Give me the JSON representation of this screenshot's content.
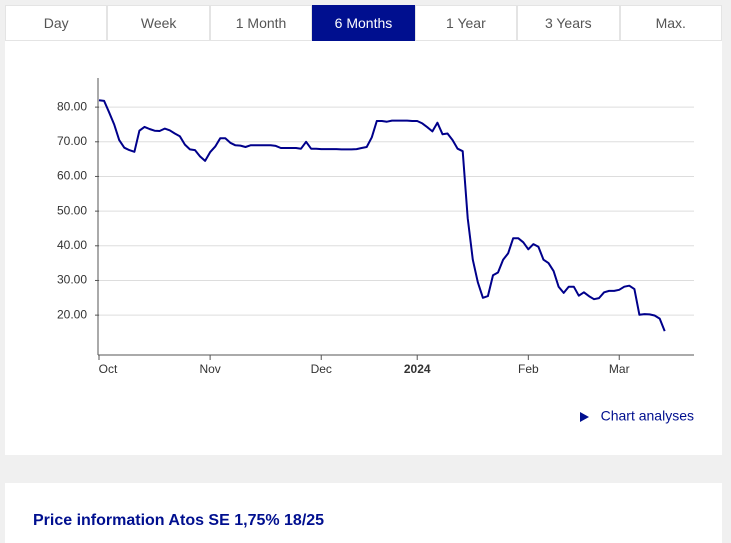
{
  "tabs": [
    {
      "label": "Day"
    },
    {
      "label": "Week"
    },
    {
      "label": "1 Month"
    },
    {
      "label": "6 Months",
      "active": true
    },
    {
      "label": "1 Year"
    },
    {
      "label": "3 Years"
    },
    {
      "label": "Max."
    }
  ],
  "chart_data": {
    "type": "line",
    "color": "#00008b",
    "values": [
      82.0,
      81.8,
      78.5,
      75.0,
      70.5,
      68.3,
      67.6,
      67.1,
      73.2,
      74.3,
      73.7,
      73.2,
      73.1,
      73.8,
      73.3,
      72.4,
      71.6,
      69.2,
      67.8,
      67.6,
      65.8,
      64.5,
      67.0,
      68.6,
      71.0,
      71.0,
      69.7,
      69.0,
      68.9,
      68.5,
      69.0,
      69.0,
      69.0,
      69.0,
      69.0,
      68.8,
      68.2,
      68.2,
      68.2,
      68.2,
      68.0,
      70.0,
      68.0,
      68.0,
      67.9,
      67.9,
      67.9,
      67.9,
      67.8,
      67.8,
      67.8,
      67.9,
      68.2,
      68.5,
      71.3,
      76.0,
      76.0,
      75.8,
      76.1,
      76.1,
      76.1,
      76.1,
      76.0,
      76.0,
      75.3,
      74.2,
      73.0,
      75.5,
      72.2,
      72.4,
      70.5,
      68.0,
      67.3,
      48.0,
      36.0,
      29.5,
      25.0,
      25.5,
      31.5,
      32.3,
      36.0,
      37.8,
      42.2,
      42.2,
      41.0,
      39.0,
      40.5,
      39.7,
      36.0,
      35.0,
      32.7,
      28.2,
      26.4,
      28.2,
      28.2,
      25.6,
      26.6,
      25.5,
      24.6,
      24.9,
      26.6,
      27.0,
      27.0,
      27.3,
      28.2,
      28.5,
      27.5,
      20.1,
      20.3,
      20.2,
      19.9,
      19.0,
      15.4
    ],
    "xlim": [
      0,
      117.8
    ],
    "xticks": [
      {
        "value": 0,
        "label": "Oct"
      },
      {
        "value": 22,
        "label": "Nov"
      },
      {
        "value": 44,
        "label": "Dec"
      },
      {
        "value": 63,
        "label": "2024"
      },
      {
        "value": 85,
        "label": "Feb"
      },
      {
        "value": 103,
        "label": "Mar"
      }
    ],
    "ylim": [
      8.5,
      88.4
    ],
    "yticks": [
      {
        "value": 20,
        "label": "20.00"
      },
      {
        "value": 30,
        "label": "30.00"
      },
      {
        "value": 40,
        "label": "40.00"
      },
      {
        "value": 50,
        "label": "50.00"
      },
      {
        "value": 60,
        "label": "60.00"
      },
      {
        "value": 70,
        "label": "70.00"
      },
      {
        "value": 80,
        "label": "80.00"
      }
    ],
    "grid": true
  },
  "link": "Chart analyses",
  "section_title": "Price information Atos SE 1,75% 18/25"
}
